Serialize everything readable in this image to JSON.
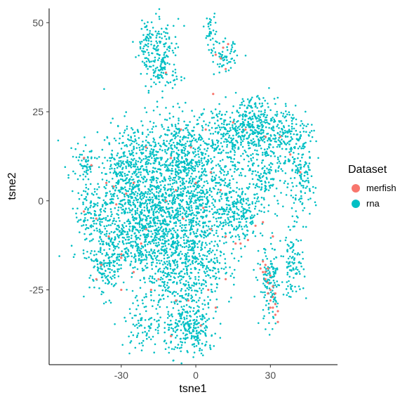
{
  "chart_data": {
    "type": "scatter",
    "title": "",
    "xlabel": "tsne1",
    "ylabel": "tsne2",
    "xlim": [
      -59,
      57
    ],
    "ylim": [
      -46,
      54
    ],
    "xticks": [
      -30,
      0,
      30
    ],
    "yticks": [
      50,
      25,
      0,
      -25
    ],
    "grid": false,
    "legend": {
      "title": "Dataset",
      "placement": "right"
    },
    "series": [
      {
        "name": "merfish",
        "color": "#F8766D",
        "points": [
          [
            -33,
            4
          ],
          [
            -32,
            -1
          ],
          [
            -28,
            2
          ],
          [
            -35,
            -10
          ],
          [
            -30,
            -15
          ],
          [
            -20,
            -8
          ],
          [
            -12,
            0
          ],
          [
            -8,
            3
          ],
          [
            -5,
            -5
          ],
          [
            0,
            5
          ],
          [
            3,
            -2
          ],
          [
            6,
            -8
          ],
          [
            10,
            3
          ],
          [
            12,
            -10
          ],
          [
            16,
            -12
          ],
          [
            18,
            -12
          ],
          [
            21,
            -11
          ],
          [
            24,
            -7
          ],
          [
            27,
            -6
          ],
          [
            31,
            -10
          ],
          [
            -3,
            -28
          ],
          [
            5,
            -25
          ],
          [
            -15,
            -22
          ],
          [
            -22,
            -12
          ],
          [
            -25,
            -20
          ],
          [
            -38,
            -18
          ],
          [
            -40,
            -5
          ],
          [
            -42,
            10
          ],
          [
            -45,
            12
          ],
          [
            -36,
            5
          ],
          [
            -30,
            -16
          ],
          [
            -18,
            -25
          ],
          [
            -8,
            -28
          ],
          [
            2,
            -35
          ],
          [
            8,
            -30
          ],
          [
            12,
            -22
          ],
          [
            -10,
            12
          ],
          [
            -6,
            20
          ],
          [
            -2,
            15
          ],
          [
            4,
            20
          ],
          [
            6,
            8
          ],
          [
            15,
            22
          ],
          [
            20,
            20
          ],
          [
            28,
            18
          ],
          [
            34,
            18
          ],
          [
            38,
            13
          ],
          [
            42,
            8
          ],
          [
            27,
            -17
          ],
          [
            28,
            -20
          ],
          [
            29,
            -23
          ],
          [
            29,
            -26
          ],
          [
            30,
            -28
          ],
          [
            31,
            -30
          ],
          [
            32,
            -32
          ],
          [
            33,
            -34
          ],
          [
            28,
            -22
          ],
          [
            30,
            -25
          ],
          [
            31,
            -27
          ],
          [
            32,
            -29
          ],
          [
            29,
            -19
          ],
          [
            28,
            -18
          ],
          [
            30,
            -21
          ],
          [
            31,
            -24
          ],
          [
            32,
            -26
          ],
          [
            33,
            -31
          ],
          [
            27,
            -20
          ],
          [
            26,
            -19
          ],
          [
            30,
            -30
          ],
          [
            8,
            41
          ],
          [
            10,
            40
          ],
          [
            11,
            43
          ],
          [
            13,
            44
          ],
          [
            12,
            37
          ],
          [
            -12,
            36
          ],
          [
            7,
            30
          ],
          [
            -20,
            15
          ],
          [
            -25,
            5
          ],
          [
            -45,
            -3
          ],
          [
            -40,
            -22
          ],
          [
            -30,
            -25
          ],
          [
            -10,
            -38
          ]
        ]
      },
      {
        "name": "rna",
        "color": "#00BFC4",
        "clusters": [
          [
            0,
            0,
            14,
            14,
            900
          ],
          [
            -14,
            -6,
            10,
            10,
            500
          ],
          [
            -30,
            -2,
            10,
            12,
            450
          ],
          [
            -25,
            10,
            8,
            8,
            300
          ],
          [
            -8,
            15,
            8,
            7,
            250
          ],
          [
            -4,
            -20,
            10,
            8,
            350
          ],
          [
            -2,
            -36,
            7,
            5,
            250
          ],
          [
            -20,
            -34,
            6,
            5,
            100
          ],
          [
            -36,
            -18,
            5,
            6,
            150
          ],
          [
            -42,
            -5,
            4,
            5,
            80
          ],
          [
            -45,
            10,
            3,
            4,
            60
          ],
          [
            15,
            18,
            8,
            6,
            250
          ],
          [
            25,
            22,
            6,
            5,
            200
          ],
          [
            36,
            18,
            7,
            6,
            200
          ],
          [
            42,
            5,
            4,
            7,
            120
          ],
          [
            28,
            6,
            5,
            5,
            120
          ],
          [
            18,
            -3,
            6,
            5,
            150
          ],
          [
            -14,
            40,
            5,
            7,
            200
          ],
          [
            -20,
            45,
            2,
            4,
            40
          ],
          [
            12,
            40,
            3,
            3,
            60
          ],
          [
            6,
            47,
            1.5,
            4,
            40
          ],
          [
            30,
            -24,
            3,
            8,
            140
          ],
          [
            39,
            -18,
            3,
            6,
            100
          ],
          [
            -22,
            -13,
            6,
            4,
            100
          ]
        ]
      }
    ]
  }
}
